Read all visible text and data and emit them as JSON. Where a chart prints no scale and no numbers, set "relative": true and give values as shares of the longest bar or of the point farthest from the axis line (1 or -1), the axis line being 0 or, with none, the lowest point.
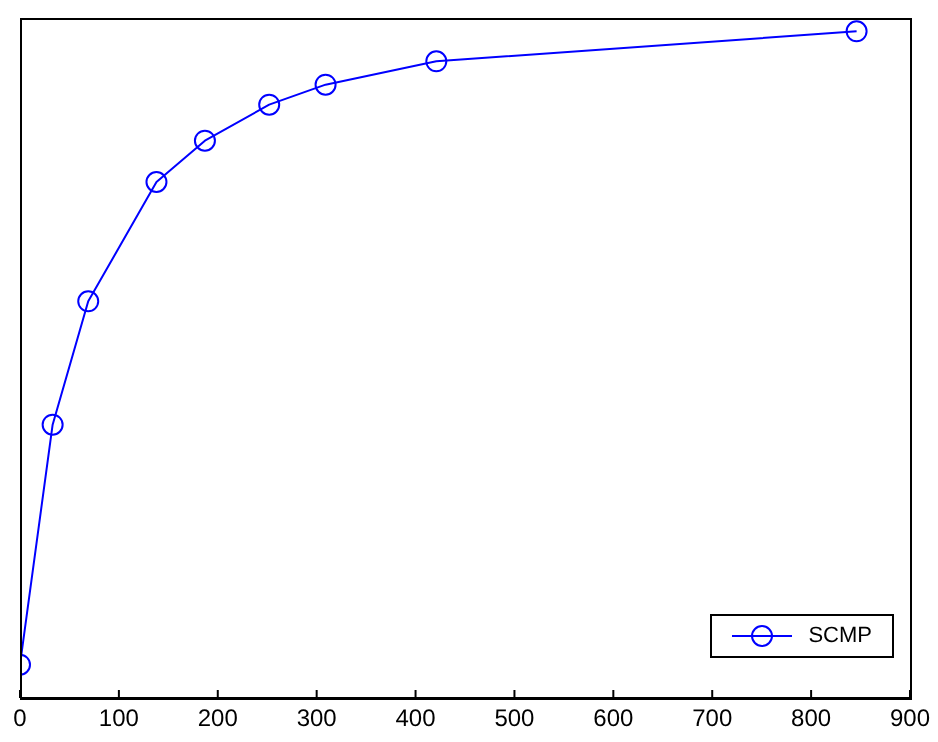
{
  "chart_data": {
    "type": "line",
    "relative": true,
    "x": [
      0,
      33,
      69,
      138,
      187,
      252,
      309,
      421,
      846
    ],
    "series": [
      {
        "name": "SCMP",
        "color": "#0000ff",
        "values": [
          0.05,
          0.41,
          0.595,
          0.774,
          0.836,
          0.89,
          0.92,
          0.955,
          1
        ]
      }
    ],
    "xlim": [
      0,
      900
    ],
    "xticks": [
      0,
      100,
      200,
      300,
      400,
      500,
      600,
      700,
      800,
      900
    ],
    "marker": "circle",
    "line_style": "solid",
    "legend": "bottom right",
    "grid": false
  }
}
